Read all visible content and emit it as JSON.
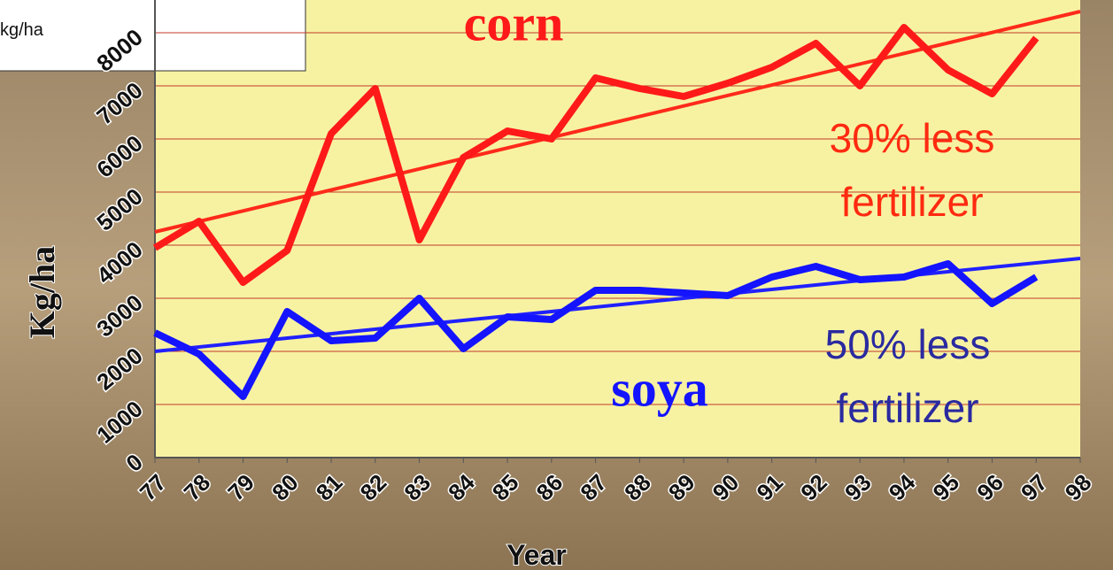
{
  "chart_data": {
    "type": "line",
    "categories": [
      "77",
      "78",
      "79",
      "80",
      "81",
      "82",
      "83",
      "84",
      "85",
      "86",
      "87",
      "88",
      "89",
      "90",
      "91",
      "92",
      "93",
      "94",
      "95",
      "96",
      "97",
      "98"
    ],
    "series": [
      {
        "name": "corn",
        "color": "#ff1a1a",
        "values": [
          3950,
          4450,
          3300,
          3900,
          6100,
          6950,
          4100,
          5650,
          6150,
          6000,
          7150,
          6950,
          6800,
          7050,
          7350,
          7800,
          7000,
          8100,
          7300,
          6850,
          7900,
          null
        ]
      },
      {
        "name": "soya",
        "color": "#1414ff",
        "values": [
          2350,
          1950,
          1150,
          2750,
          2200,
          2250,
          3000,
          2050,
          2650,
          2600,
          3150,
          3150,
          3100,
          3050,
          3400,
          3600,
          3350,
          3400,
          3650,
          2900,
          3400,
          null
        ]
      }
    ],
    "trend_lines": [
      {
        "color": "#ff2a1a",
        "start": 4250,
        "end": 8400
      },
      {
        "color": "#2020ff",
        "start": 2000,
        "end": 3750
      }
    ],
    "ylim": [
      0,
      9000
    ],
    "yticks": [
      0,
      1000,
      2000,
      3000,
      4000,
      5000,
      6000,
      7000,
      8000
    ],
    "grid": true,
    "x_label": "Year",
    "y_label": "Kg/ha",
    "annotations": [
      {
        "lines": [
          "corn"
        ],
        "color": "#ff1a1a",
        "style": "serif"
      },
      {
        "lines": [
          "soya"
        ],
        "color": "#1414ff",
        "style": "serif"
      },
      {
        "lines": [
          "30% less",
          "fertilizer"
        ],
        "color": "#ff2a10",
        "style": "sans"
      },
      {
        "lines": [
          "50% less",
          "fertilizer"
        ],
        "color": "#2a2aa0",
        "style": "sans"
      }
    ],
    "legend_box": {
      "text": "kg/ha"
    }
  }
}
